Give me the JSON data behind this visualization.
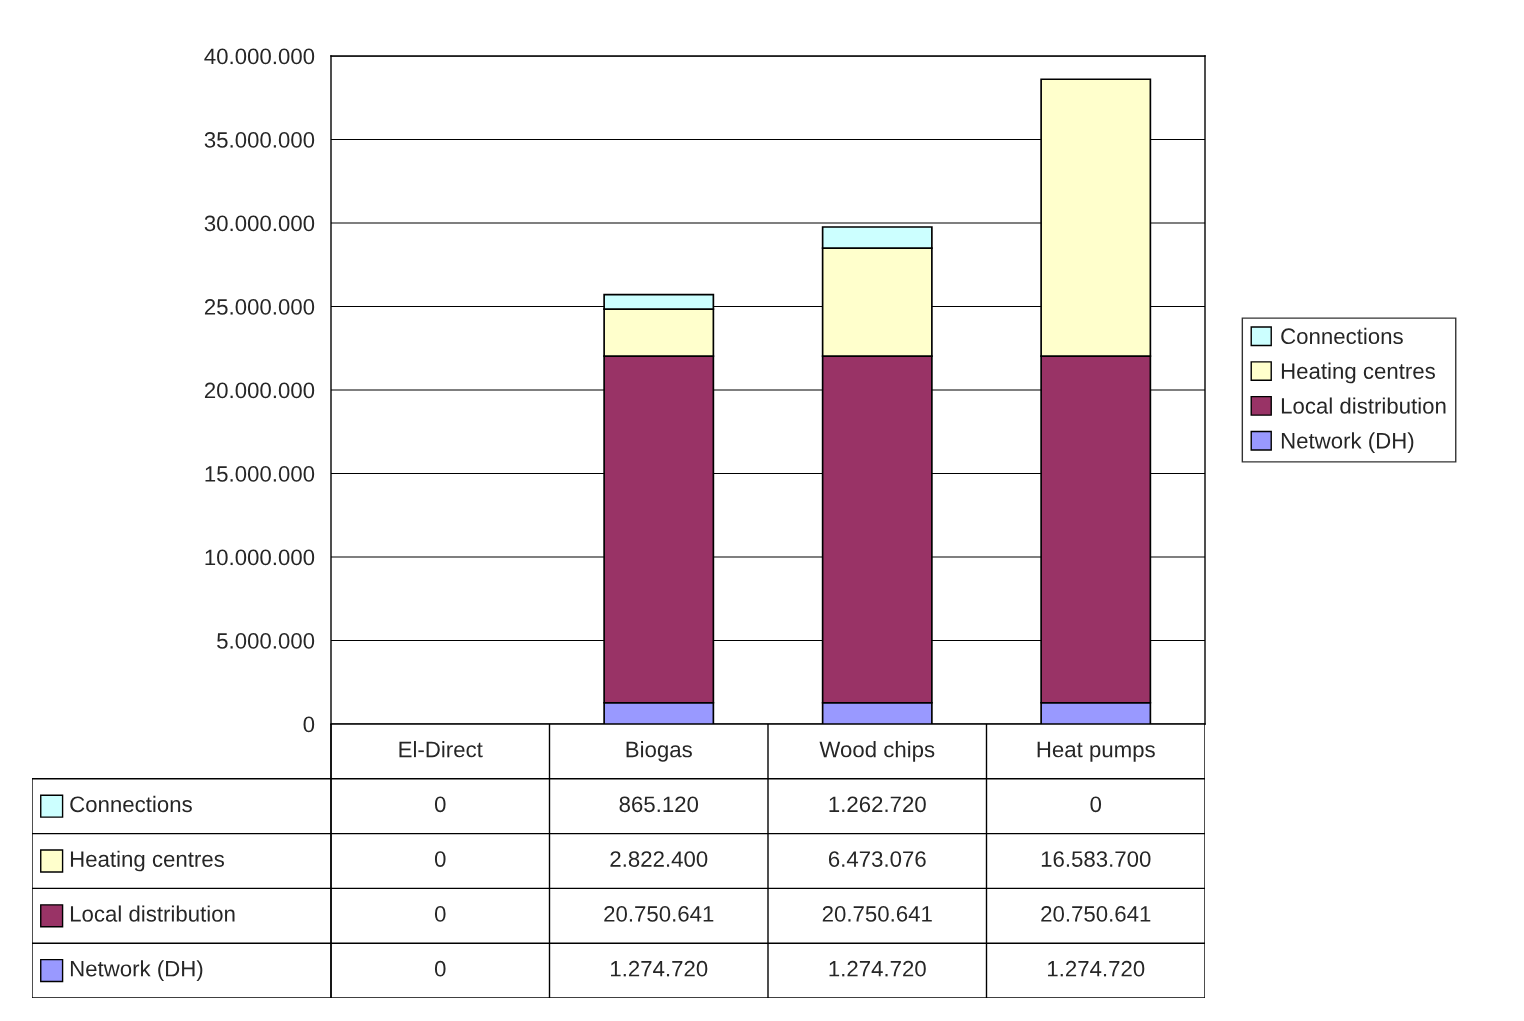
{
  "chart_data": {
    "type": "bar",
    "stacked": true,
    "categories": [
      "El-Direct",
      "Biogas",
      "Wood chips",
      "Heat pumps"
    ],
    "series": [
      {
        "name": "Network (DH)",
        "color": "#9999ff",
        "values": [
          0,
          1274720,
          1274720,
          1274720
        ],
        "value_labels": [
          "0",
          "1.274.720",
          "1.274.720",
          "1.274.720"
        ]
      },
      {
        "name": "Local distribution",
        "color": "#993366",
        "values": [
          0,
          20750641,
          20750641,
          20750641
        ],
        "value_labels": [
          "0",
          "20.750.641",
          "20.750.641",
          "20.750.641"
        ]
      },
      {
        "name": "Heating centres",
        "color": "#ffffcc",
        "values": [
          0,
          2822400,
          6473076,
          16583700
        ],
        "value_labels": [
          "0",
          "2.822.400",
          "6.473.076",
          "16.583.700"
        ]
      },
      {
        "name": "Connections",
        "color": "#ccffff",
        "values": [
          0,
          865120,
          1262720,
          0
        ],
        "value_labels": [
          "0",
          "865.120",
          "1.262.720",
          "0"
        ]
      }
    ],
    "ylim": [
      0,
      40000000
    ],
    "yticks": [
      0,
      {
        "value": 5000000,
        "label": "5.000.000"
      },
      {
        "value": 10000000,
        "label": "10.000.000"
      },
      {
        "value": 15000000,
        "label": "15.000.000"
      },
      {
        "value": 20000000,
        "label": "20.000.000"
      },
      {
        "value": 25000000,
        "label": "25.000.000"
      },
      {
        "value": 30000000,
        "label": "30.000.000"
      },
      {
        "value": 35000000,
        "label": "35.000.000"
      },
      {
        "value": 40000000,
        "label": "40.000.000"
      }
    ],
    "grid": "y",
    "legend": "right"
  }
}
